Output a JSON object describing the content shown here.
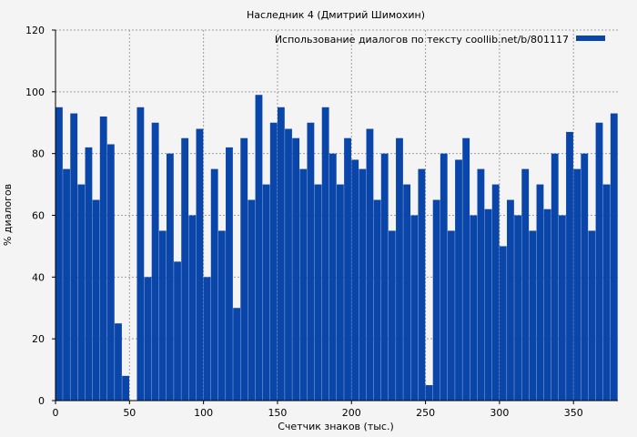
{
  "chart_data": {
    "type": "bar",
    "title": "Наследник 4 (Дмитрий Шимохин)",
    "xlabel": "Счетчик знаков (тыс.)",
    "ylabel": "% диалогов",
    "xlim": [
      0,
      380
    ],
    "ylim": [
      0,
      120
    ],
    "x_ticks": [
      0,
      50,
      100,
      150,
      200,
      250,
      300,
      350
    ],
    "y_ticks": [
      0,
      20,
      40,
      60,
      80,
      100,
      120
    ],
    "grid": true,
    "legend_position": "top-right",
    "bar_color": "#0a46aa",
    "series": [
      {
        "name": "Использование диалогов по тексту coollib.net/b/801117",
        "x": [
          0,
          5,
          10,
          15,
          20,
          25,
          30,
          35,
          40,
          45,
          50,
          55,
          60,
          65,
          70,
          75,
          80,
          85,
          90,
          95,
          100,
          105,
          110,
          115,
          120,
          125,
          130,
          135,
          140,
          145,
          150,
          155,
          160,
          165,
          170,
          175,
          180,
          185,
          190,
          195,
          200,
          205,
          210,
          215,
          220,
          225,
          230,
          235,
          240,
          245,
          250,
          255,
          260,
          265,
          270,
          275,
          280,
          285,
          290,
          295,
          300,
          305,
          310,
          315,
          320,
          325,
          330,
          335,
          340,
          345,
          350,
          355,
          360,
          365,
          370,
          375
        ],
        "values": [
          95,
          75,
          93,
          70,
          82,
          65,
          92,
          83,
          25,
          8,
          0,
          95,
          40,
          90,
          55,
          80,
          45,
          85,
          60,
          88,
          40,
          75,
          55,
          82,
          30,
          85,
          65,
          99,
          70,
          90,
          95,
          88,
          85,
          75,
          90,
          70,
          95,
          80,
          70,
          85,
          78,
          75,
          88,
          65,
          80,
          55,
          85,
          70,
          60,
          75,
          5,
          65,
          80,
          55,
          78,
          85,
          60,
          75,
          62,
          70,
          50,
          65,
          60,
          75,
          55,
          70,
          62,
          80,
          60,
          87,
          75,
          80,
          55,
          90,
          70,
          93
        ]
      }
    ]
  }
}
